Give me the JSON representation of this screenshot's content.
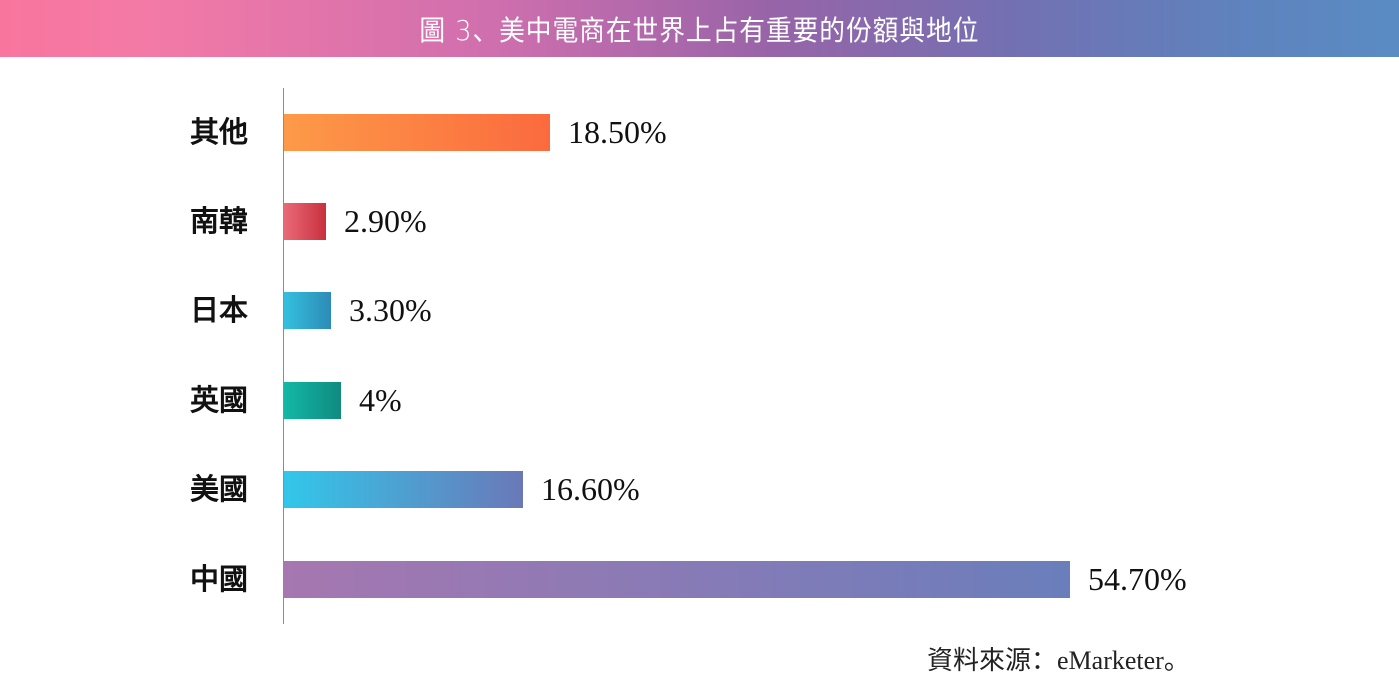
{
  "header": {
    "title": "圖 3、美中電商在世界上占有重要的份額與地位"
  },
  "source": {
    "text": "資料來源：eMarketer。"
  },
  "colors": {
    "header_gradient": [
      "#f8759e",
      "#d06fae",
      "#9864a8",
      "#7370b2",
      "#5a8cc3"
    ],
    "axis": "#8c8c8c"
  },
  "chart_data": {
    "type": "bar",
    "orientation": "horizontal",
    "title": "圖 3、美中電商在世界上占有重要的份額與地位",
    "xlabel": "",
    "ylabel": "",
    "categories": [
      "其他",
      "南韓",
      "日本",
      "英國",
      "美國",
      "中國"
    ],
    "values": [
      18.5,
      2.9,
      3.3,
      4.0,
      16.6,
      54.7
    ],
    "value_labels": [
      "18.50%",
      "2.90%",
      "3.30%",
      "4%",
      "16.60%",
      "54.70%"
    ],
    "unit": "%",
    "bar_colors": [
      [
        "#fd9a48",
        "#fb6a3e"
      ],
      [
        "#ea6a78",
        "#c9303e"
      ],
      [
        "#34c0df",
        "#2d8bb6"
      ],
      [
        "#12b8a6",
        "#108a80"
      ],
      [
        "#32c7ea",
        "#6a78b8"
      ],
      [
        "#a677b0",
        "#6a7ebc"
      ]
    ],
    "grid": false,
    "legend": "none",
    "xlim": [
      0,
      54.7
    ],
    "source": "資料來源：eMarketer。"
  }
}
